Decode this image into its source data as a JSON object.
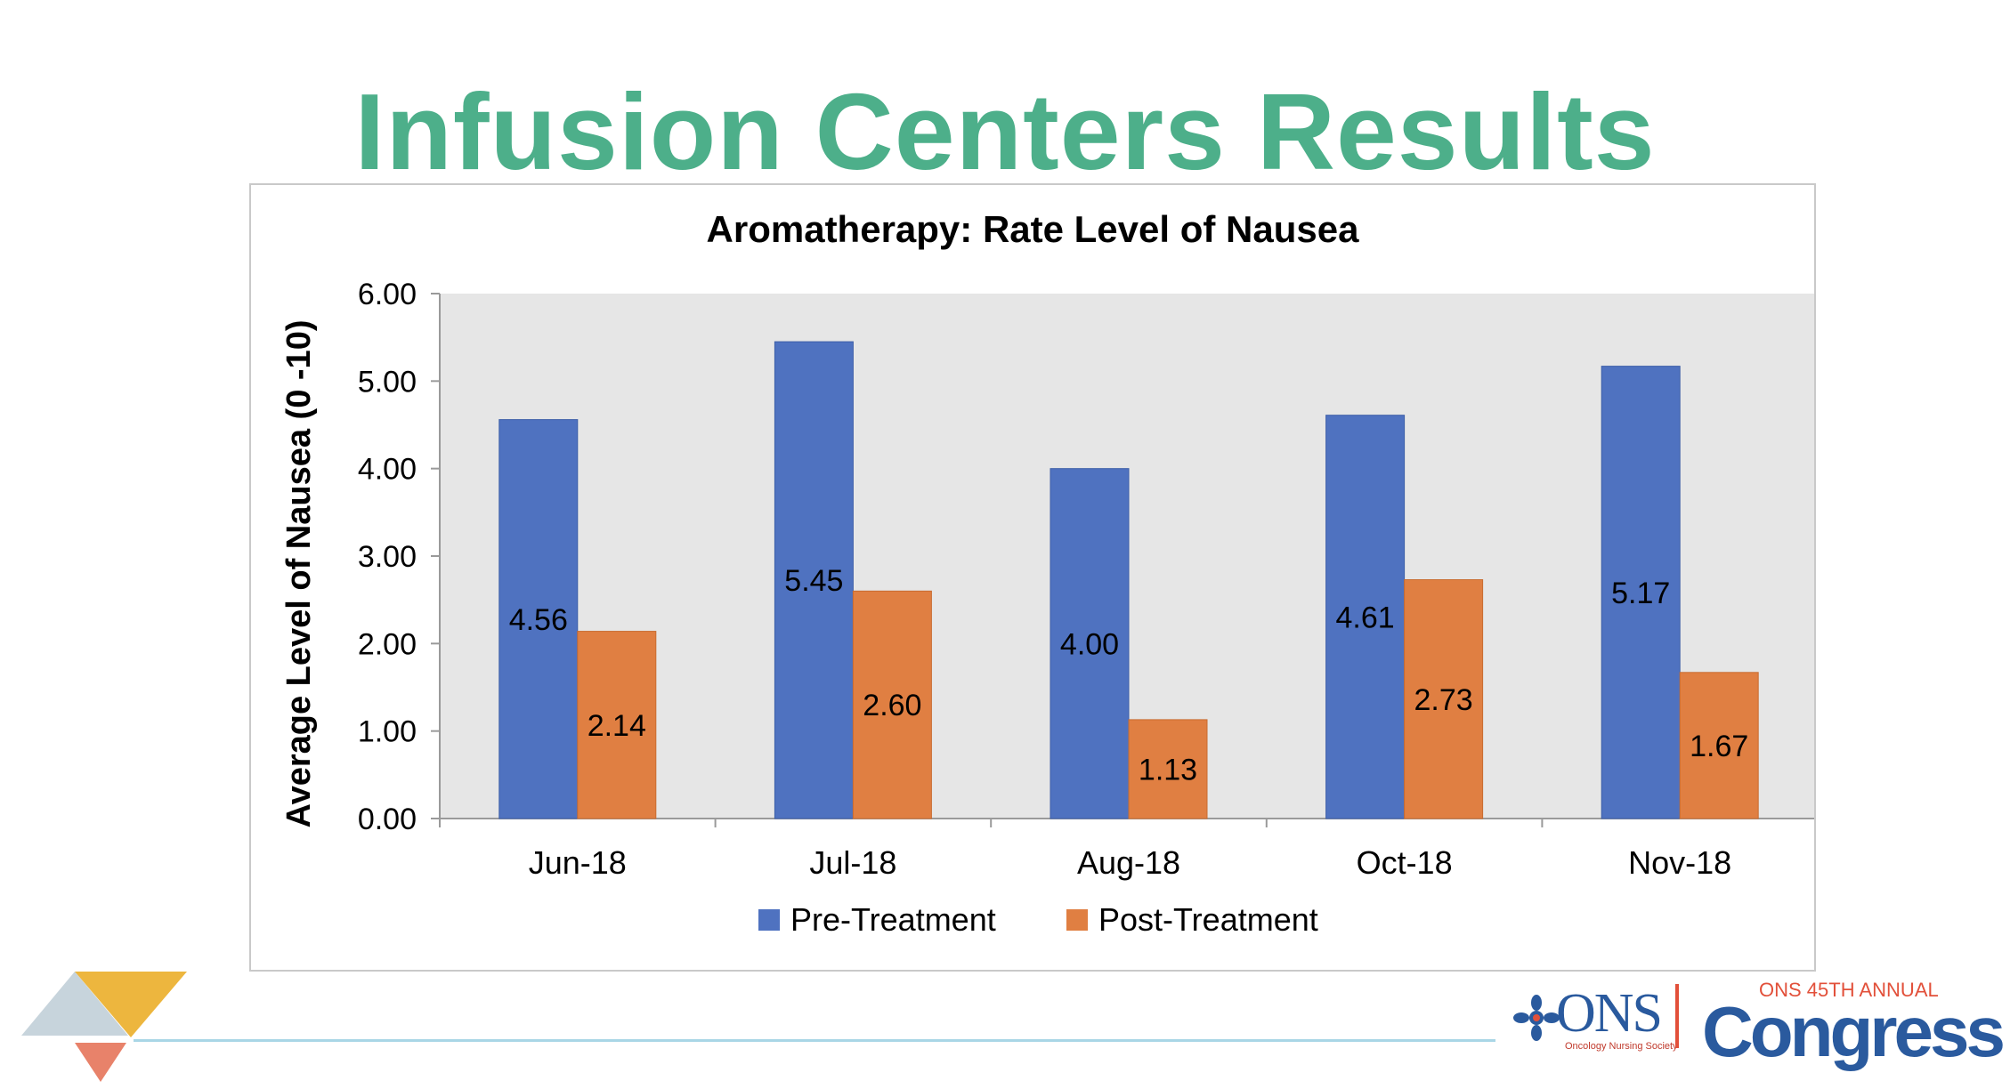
{
  "slide": {
    "title": "Infusion Centers Results"
  },
  "logos": {
    "ons_word": "ONS",
    "ons_sub": "Oncology Nursing Society",
    "congress_top": "ONS 45TH ANNUAL",
    "congress_word": "Congress"
  },
  "colors": {
    "title": "#4daf8a",
    "pre": "#4f72c0",
    "post": "#e07f42",
    "plot_bg": "#e6e6e6"
  },
  "chart_data": {
    "type": "bar",
    "title": "Aromatherapy: Rate Level of Nausea",
    "xlabel": "",
    "ylabel": "Average Level of Nausea (0 -10)",
    "categories": [
      "Jun-18",
      "Jul-18",
      "Aug-18",
      "Oct-18",
      "Nov-18"
    ],
    "series": [
      {
        "name": "Pre-Treatment",
        "values": [
          4.56,
          5.45,
          4.0,
          4.61,
          5.17
        ],
        "labels": [
          "4.56",
          "5.45",
          "4.00",
          "4.61",
          "5.17"
        ]
      },
      {
        "name": "Post-Treatment",
        "values": [
          2.14,
          2.6,
          1.13,
          2.73,
          1.67
        ],
        "labels": [
          "2.14",
          "2.60",
          "1.13",
          "2.73",
          "1.67"
        ]
      }
    ],
    "ylim": [
      0,
      6
    ],
    "yticks": [
      "0.00",
      "1.00",
      "2.00",
      "3.00",
      "4.00",
      "5.00",
      "6.00"
    ],
    "grid": false,
    "legend": "bottom"
  }
}
